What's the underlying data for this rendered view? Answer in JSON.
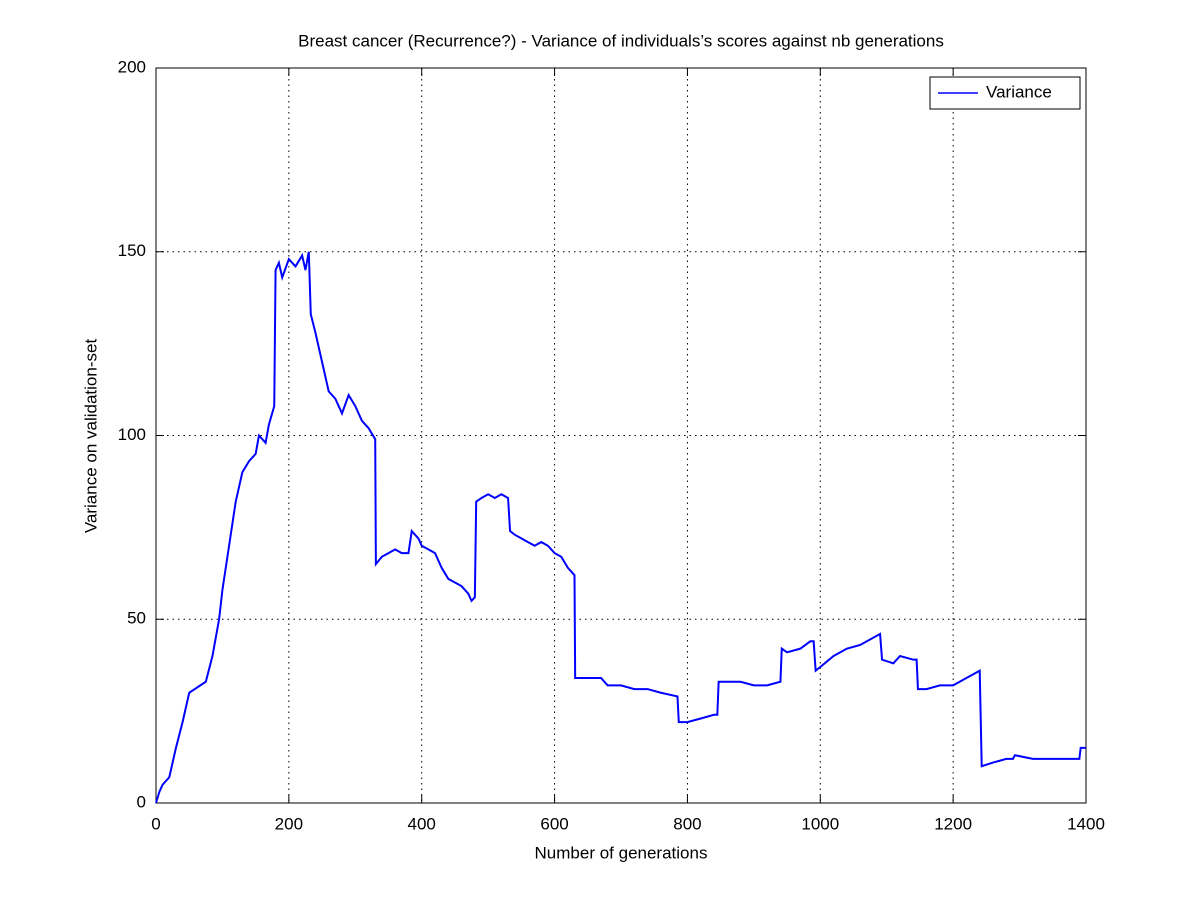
{
  "chart_data": {
    "type": "line",
    "title": "Breast cancer (Recurrence?) - Variance of individuals’s scores against nb generations",
    "x_label": "Number of generations",
    "y_label": "Variance on validation-set",
    "xlim": [
      0,
      1400
    ],
    "xticks": [
      0,
      200,
      400,
      600,
      800,
      1000,
      1200,
      1400
    ],
    "ylim": [
      0,
      200
    ],
    "yticks": [
      0,
      50,
      100,
      150,
      200
    ],
    "grid": true,
    "legend": "upper-right",
    "x": [
      0,
      5,
      10,
      20,
      30,
      40,
      50,
      75,
      85,
      95,
      100,
      110,
      120,
      130,
      140,
      150,
      155,
      165,
      170,
      178,
      180,
      185,
      190,
      200,
      210,
      220,
      225,
      230,
      233,
      240,
      250,
      260,
      270,
      280,
      290,
      300,
      310,
      320,
      330,
      331,
      340,
      350,
      360,
      370,
      380,
      385,
      395,
      400,
      410,
      420,
      430,
      440,
      450,
      460,
      470,
      475,
      480,
      482,
      490,
      500,
      510,
      520,
      530,
      533,
      540,
      550,
      560,
      570,
      580,
      590,
      600,
      610,
      620,
      630,
      631,
      650,
      670,
      680,
      700,
      720,
      740,
      760,
      785,
      787,
      800,
      820,
      840,
      845,
      847,
      860,
      880,
      900,
      920,
      940,
      942,
      950,
      970,
      985,
      990,
      993,
      1000,
      1020,
      1040,
      1060,
      1080,
      1090,
      1093,
      1110,
      1120,
      1140,
      1145,
      1147,
      1160,
      1180,
      1200,
      1220,
      1240,
      1243,
      1260,
      1280,
      1290,
      1293,
      1320,
      1360,
      1390,
      1392,
      1400
    ],
    "series": [
      {
        "name": "Variance",
        "color": "#0000ff",
        "values": [
          0,
          3,
          5,
          7,
          15,
          22,
          30,
          33,
          40,
          50,
          58,
          70,
          82,
          90,
          93,
          95,
          100,
          98,
          103,
          108,
          145,
          147,
          143,
          148,
          146,
          149,
          145,
          150,
          133,
          128,
          120,
          112,
          110,
          106,
          111,
          108,
          104,
          102,
          99,
          65,
          67,
          68,
          69,
          68,
          68,
          74,
          72,
          70,
          69,
          68,
          64,
          61,
          60,
          59,
          57,
          55,
          56,
          82,
          83,
          84,
          83,
          84,
          83,
          74,
          73,
          72,
          71,
          70,
          71,
          70,
          68,
          67,
          64,
          62,
          34,
          34,
          34,
          32,
          32,
          31,
          31,
          30,
          29,
          22,
          22,
          23,
          24,
          24,
          33,
          33,
          33,
          32,
          32,
          33,
          42,
          41,
          42,
          44,
          44,
          36,
          37,
          40,
          42,
          43,
          45,
          46,
          39,
          38,
          40,
          39,
          39,
          31,
          31,
          32,
          32,
          34,
          36,
          10,
          11,
          12,
          12,
          13,
          12,
          12,
          12,
          15,
          15
        ]
      }
    ]
  }
}
